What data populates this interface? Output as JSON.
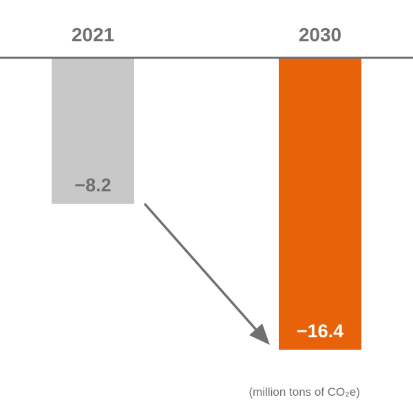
{
  "chart_data": {
    "type": "bar",
    "categories": [
      "2021",
      "2030"
    ],
    "values": [
      -8.2,
      -16.4
    ],
    "value_labels": [
      "−8.2",
      "−16.4"
    ],
    "unit_note": "(million tons of CO₂e)",
    "ylim": [
      -16.4,
      0
    ],
    "colors": {
      "bar_2021": "#c8c8c8",
      "bar_2030": "#e8620a",
      "baseline": "#707070",
      "arrow": "#707070",
      "label_2021": "#707070",
      "label_2030": "#ffffff",
      "text": "#707070"
    },
    "grid": false,
    "legend": "none",
    "annotations": [
      "arrow from 2021 bar toward 2030 bar"
    ]
  }
}
